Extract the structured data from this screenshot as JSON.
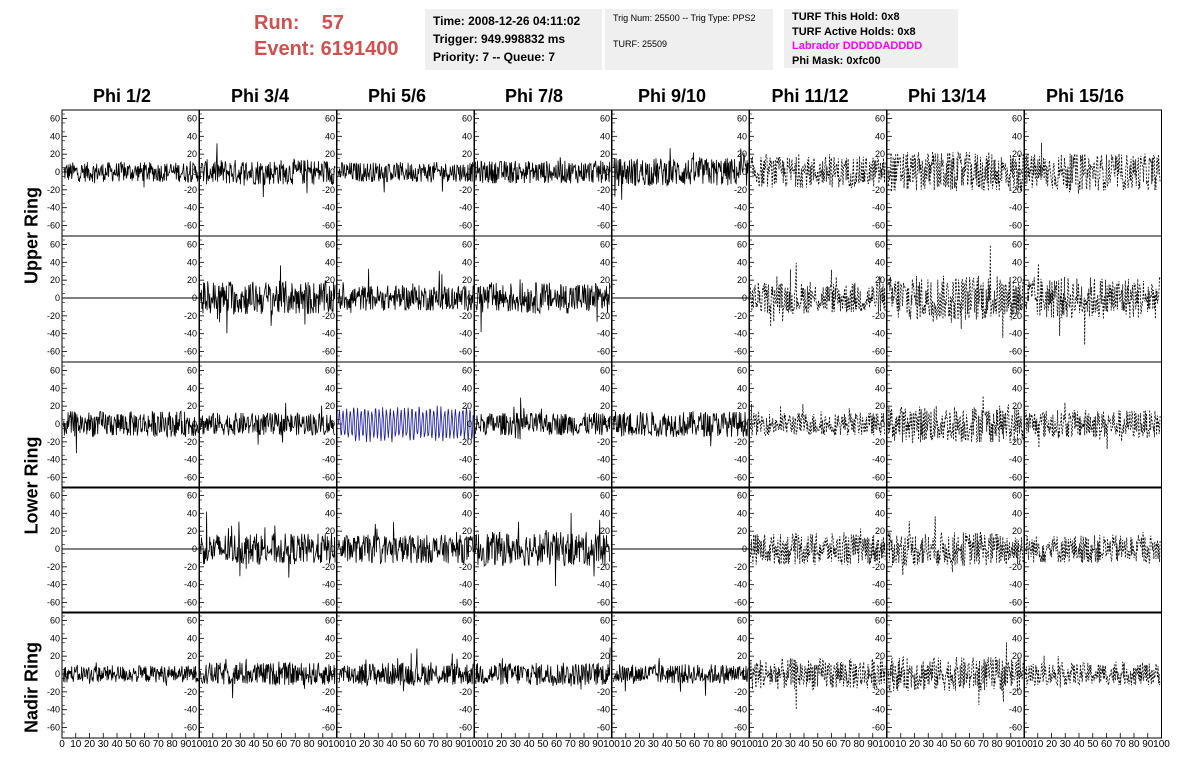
{
  "header": {
    "run_label": "Run:    57",
    "event_label": "Event: 6191400",
    "info1": [
      "Time: 2008-12-26 04:11:02",
      "Trigger: 949.998832 ms",
      "Priority: 7 -- Queue: 7"
    ],
    "info2_line1": "Trig Num: 25500 -- Trig Type: PPS2",
    "info2_line2": "TURF: 25509",
    "info3": {
      "hold": "TURF This Hold: 0x8",
      "active": "TURF Active Holds: 0x8",
      "labrador": "Labrador DDDDDADDDD",
      "phimask": "Phi Mask: 0xfc00"
    }
  },
  "columns": [
    "Phi 1/2",
    "Phi 3/4",
    "Phi 5/6",
    "Phi 7/8",
    "Phi 9/10",
    "Phi 11/12",
    "Phi 13/14",
    "Phi 15/16"
  ],
  "rings": [
    "Upper Ring",
    "Lower Ring",
    "Nadir Ring"
  ],
  "colors": {
    "trace": "#000000",
    "highlight": "#1a1aa0",
    "header_red": "#d0504f",
    "magenta": "#ff00ff"
  },
  "chart_data": {
    "type": "line",
    "xlim": [
      0,
      100
    ],
    "ylim": [
      -65,
      65
    ],
    "yticks": [
      -60,
      -40,
      -20,
      0,
      20,
      40,
      60
    ],
    "xticks": [
      0,
      10,
      20,
      30,
      40,
      50,
      60,
      70,
      80,
      90,
      100
    ],
    "x_tick_strip": [
      "0 102030405060708090100",
      "10 2030405060708090100",
      "102030405060708090100",
      "102030405060708090100",
      "102030405060708090100",
      "10 2030405060708090100",
      "10 2030405060708090100",
      "10 2030405060708090100"
    ],
    "rows": [
      {
        "name": "upper-a",
        "panels": [
          {
            "style": "solid",
            "amp": 14
          },
          {
            "style": "solid",
            "amp": 18
          },
          {
            "style": "solid",
            "amp": 14
          },
          {
            "style": "solid",
            "amp": 16
          },
          {
            "style": "solid",
            "amp": 20
          },
          {
            "style": "dashed",
            "amp": 22
          },
          {
            "style": "dashed",
            "amp": 28
          },
          {
            "style": "dashed",
            "amp": 26
          }
        ]
      },
      {
        "name": "upper-b",
        "panels": [
          {
            "style": "flat",
            "amp": 0
          },
          {
            "style": "solid",
            "amp": 24
          },
          {
            "style": "solid",
            "amp": 18
          },
          {
            "style": "solid",
            "amp": 22
          },
          {
            "style": "flat",
            "amp": 0
          },
          {
            "style": "dashed",
            "amp": 22
          },
          {
            "style": "dashed",
            "amp": 32
          },
          {
            "style": "dashed",
            "amp": 30
          }
        ]
      },
      {
        "name": "lower-a",
        "panels": [
          {
            "style": "solid",
            "amp": 18
          },
          {
            "style": "solid",
            "amp": 16
          },
          {
            "style": "highlight",
            "amp": 18
          },
          {
            "style": "solid",
            "amp": 16
          },
          {
            "style": "solid",
            "amp": 18
          },
          {
            "style": "dashed",
            "amp": 16
          },
          {
            "style": "dashed",
            "amp": 26
          },
          {
            "style": "dashed",
            "amp": 20
          }
        ]
      },
      {
        "name": "lower-b",
        "panels": [
          {
            "style": "flat",
            "amp": 0
          },
          {
            "style": "solid",
            "amp": 22
          },
          {
            "style": "solid",
            "amp": 20
          },
          {
            "style": "solid",
            "amp": 24
          },
          {
            "style": "flat",
            "amp": 0
          },
          {
            "style": "dashed",
            "amp": 22
          },
          {
            "style": "dashed",
            "amp": 24
          },
          {
            "style": "dashed",
            "amp": 20
          }
        ]
      },
      {
        "name": "nadir",
        "panels": [
          {
            "style": "solid",
            "amp": 12
          },
          {
            "style": "solid",
            "amp": 16
          },
          {
            "style": "solid",
            "amp": 16
          },
          {
            "style": "solid",
            "amp": 16
          },
          {
            "style": "solid",
            "amp": 14
          },
          {
            "style": "dashed",
            "amp": 22
          },
          {
            "style": "dashed",
            "amp": 24
          },
          {
            "style": "dashed",
            "amp": 16
          }
        ]
      }
    ]
  }
}
